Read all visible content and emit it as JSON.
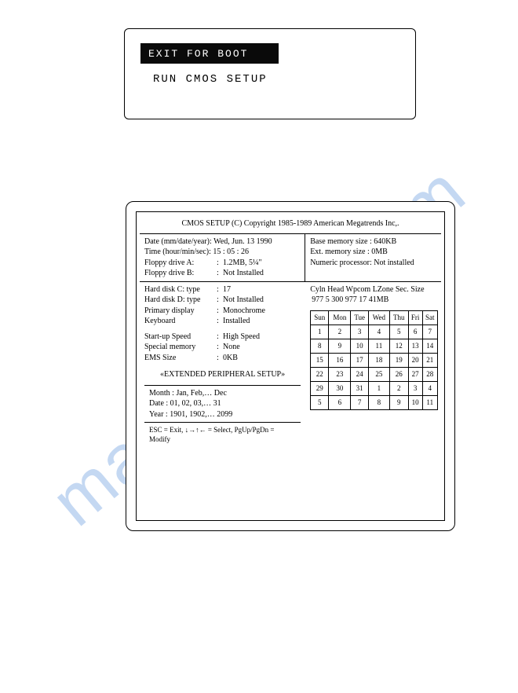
{
  "top": {
    "exit": "EXIT FOR BOOT",
    "run": "RUN CMOS SETUP"
  },
  "cmos": {
    "header": "CMOS SETUP (C) Copyright 1985-1989 American Megatrends Inc,.",
    "block1": {
      "date_label": "Date (mm/date/year):",
      "date_value": "Wed, Jun. 13 1990",
      "time_label": "Time (hour/min/sec):",
      "time_value": "15 : 05 : 26",
      "floppy_a_label": "Floppy drive A:",
      "floppy_a_value": "1.2MB, 5¼\"",
      "floppy_b_label": "Floppy drive B:",
      "floppy_b_value": "Not Installed"
    },
    "block2": {
      "base_label": "Base memory size :",
      "base_value": "640KB",
      "ext_label": "Ext. memory size :",
      "ext_value": "0MB",
      "num_label": "Numeric processor:",
      "num_value": "Not installed"
    },
    "block3": {
      "hdc_label": "Hard disk C: type",
      "hdc_value": "17",
      "hdd_label": "Hard disk D: type",
      "hdd_value": "Not Installed",
      "disp_label": "Primary display",
      "disp_value": "Monochrome",
      "kbd_label": "Keyboard",
      "kbd_value": "Installed",
      "speed_label": "Start-up Speed",
      "speed_value": "High Speed",
      "spec_label": "Special memory",
      "spec_value": "None",
      "ems_label": "EMS Size",
      "ems_value": "0KB",
      "ext_setup": "«EXTENDED PERIPHERAL SETUP»"
    },
    "disk": {
      "header": "Cyln Head Wpcom LZone Sec. Size",
      "row": " 977    5     300    977   17  41MB"
    },
    "calendar": {
      "days": [
        "Sun",
        "Mon",
        "Tue",
        "Wed",
        "Thu",
        "Fri",
        "Sat"
      ],
      "rows": [
        [
          "1",
          "2",
          "3",
          "4",
          "5",
          "6",
          "7"
        ],
        [
          "8",
          "9",
          "10",
          "11",
          "12",
          "13",
          "14"
        ],
        [
          "15",
          "16",
          "17",
          "18",
          "19",
          "20",
          "21"
        ],
        [
          "22",
          "23",
          "24",
          "25",
          "26",
          "27",
          "28"
        ],
        [
          "29",
          "30",
          "31",
          "1",
          "2",
          "3",
          "4"
        ],
        [
          "5",
          "6",
          "7",
          "8",
          "9",
          "10",
          "11"
        ]
      ]
    },
    "hints": {
      "month": "Month : Jan, Feb,… Dec",
      "date": "Date   : 01, 02, 03,… 31",
      "year": "Year   : 1901, 1902,… 2099"
    },
    "help": "ESC = Exit, ↓→↑← = Select, PgUp/PgDn = Modify"
  },
  "watermark": "manualslib.com",
  "colors": {
    "watermark": "#7ea9e4",
    "border": "#000000",
    "bg": "#ffffff",
    "exit_bg": "#0a0a0a",
    "exit_fg": "#ffffff"
  }
}
